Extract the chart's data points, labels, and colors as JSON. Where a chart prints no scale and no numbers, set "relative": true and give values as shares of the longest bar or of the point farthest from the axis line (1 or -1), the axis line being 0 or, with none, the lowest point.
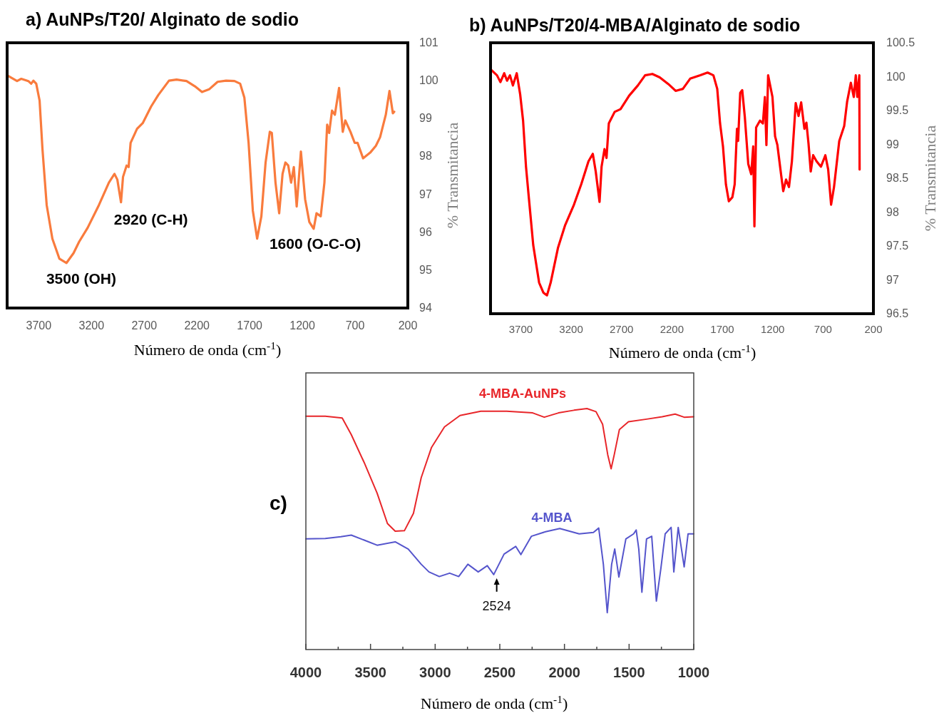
{
  "chart_data": [
    {
      "type": "line",
      "title": "a) AuNPs/T20/ Alginato de sodio",
      "xlabel": "Número de onda (cm$^{-1}$)",
      "ylabel": "% Transmitancia",
      "xlim": [
        4000,
        200
      ],
      "xticks": [
        3700,
        3200,
        2700,
        2200,
        1700,
        1200,
        700,
        200
      ],
      "ylim": [
        94,
        101
      ],
      "yticks": [
        94,
        95,
        96,
        97,
        98,
        99,
        100,
        101
      ],
      "grid": false,
      "legend": false,
      "marker": "none",
      "line_style": "solid",
      "annotations": [
        {
          "text": "3500  (OH)",
          "x": 3500,
          "y": 95.2
        },
        {
          "text": "2920 (C-H)",
          "x": 2920,
          "y": 96.8
        },
        {
          "text": "1600 (O-C-O)",
          "x": 1600,
          "y": 95.8
        }
      ],
      "series": [
        {
          "color": "#f97b3d",
          "x": [
            4000,
            3906,
            3866,
            3799,
            3772,
            3751,
            3724,
            3692,
            3665,
            3625,
            3571,
            3504,
            3437,
            3370,
            3317,
            3236,
            3129,
            3035,
            2982,
            2955,
            2920,
            2901,
            2867,
            2848,
            2829,
            2768,
            2714,
            2634,
            2567,
            2465,
            2393,
            2299,
            2219,
            2152,
            2085,
            2004,
            1924,
            1844,
            1790,
            1750,
            1710,
            1670,
            1629,
            1589,
            1549,
            1509,
            1490,
            1455,
            1420,
            1388,
            1361,
            1334,
            1307,
            1281,
            1254,
            1214,
            1174,
            1134,
            1093,
            1066,
            1026,
            991,
            965,
            946,
            919,
            892,
            852,
            817,
            793,
            744,
            704,
            677,
            624,
            557,
            503,
            463,
            409,
            374,
            342,
            329
          ],
          "values": [
            100.14,
            99.99,
            100.05,
            99.99,
            99.92,
            100.0,
            99.92,
            99.47,
            98.2,
            96.72,
            95.83,
            95.3,
            95.19,
            95.45,
            95.75,
            96.12,
            96.72,
            97.31,
            97.54,
            97.39,
            96.79,
            97.46,
            97.76,
            97.72,
            98.36,
            98.73,
            98.88,
            99.32,
            99.62,
            100.0,
            100.03,
            99.99,
            99.85,
            99.7,
            99.77,
            99.97,
            100.0,
            99.99,
            99.92,
            99.55,
            98.36,
            96.57,
            95.83,
            96.42,
            97.84,
            98.65,
            98.62,
            97.31,
            96.5,
            97.54,
            97.84,
            97.76,
            97.31,
            97.72,
            96.68,
            98.13,
            96.87,
            96.27,
            96.09,
            96.5,
            96.42,
            97.31,
            98.84,
            98.62,
            99.21,
            99.1,
            99.81,
            98.65,
            98.95,
            98.65,
            98.36,
            98.36,
            97.95,
            98.1,
            98.28,
            98.51,
            99.1,
            99.73,
            99.14,
            99.18
          ]
        }
      ]
    },
    {
      "type": "line",
      "title": "b) AuNPs/T20/4-MBA/Alginato de sodio",
      "xlabel": "Número de onda (cm$^{-1}$)",
      "ylabel": "% Transmitancia",
      "xlim": [
        4000,
        200
      ],
      "xticks": [
        3700,
        3200,
        2700,
        2200,
        1700,
        1200,
        700,
        200
      ],
      "ylim": [
        96.5,
        100.5
      ],
      "yticks": [
        96.5,
        97,
        97.5,
        98,
        98.5,
        99,
        99.5,
        100,
        100.5
      ],
      "grid": false,
      "legend": false,
      "marker": "none",
      "line_style": "solid",
      "series": [
        {
          "color": "#ff0000",
          "x": [
            4000,
            3936,
            3902,
            3864,
            3836,
            3807,
            3778,
            3740,
            3706,
            3677,
            3648,
            3619,
            3576,
            3518,
            3475,
            3440,
            3403,
            3331,
            3259,
            3172,
            3100,
            3028,
            2985,
            2956,
            2918,
            2898,
            2869,
            2849,
            2826,
            2768,
            2710,
            2624,
            2538,
            2466,
            2394,
            2321,
            2235,
            2163,
            2091,
            2019,
            1918,
            1846,
            1788,
            1750,
            1722,
            1693,
            1664,
            1635,
            1600,
            1577,
            1554,
            1543,
            1522,
            1502,
            1476,
            1442,
            1413,
            1393,
            1381,
            1364,
            1326,
            1297,
            1277,
            1262,
            1245,
            1202,
            1176,
            1153,
            1115,
            1095,
            1067,
            1038,
            1009,
            971,
            943,
            917,
            885,
            865,
            844,
            822,
            798,
            764,
            721,
            677,
            649,
            620,
            591,
            539,
            490,
            461,
            424,
            395,
            375,
            360,
            340,
            337
          ],
          "values": [
            100.11,
            100.02,
            99.92,
            100.05,
            99.94,
            100.02,
            99.87,
            100.05,
            99.74,
            99.35,
            98.67,
            98.2,
            97.51,
            96.96,
            96.81,
            96.77,
            96.96,
            97.47,
            97.81,
            98.11,
            98.41,
            98.75,
            98.86,
            98.6,
            98.15,
            98.67,
            98.93,
            98.8,
            99.31,
            99.48,
            99.52,
            99.72,
            99.87,
            100.02,
            100.04,
            99.99,
            99.89,
            99.79,
            99.82,
            99.97,
            100.02,
            100.06,
            100.02,
            99.82,
            99.31,
            98.97,
            98.41,
            98.16,
            98.22,
            98.41,
            99.23,
            99.05,
            99.76,
            99.8,
            99.4,
            98.71,
            98.56,
            98.97,
            97.79,
            99.25,
            99.35,
            99.31,
            99.7,
            98.99,
            100.02,
            99.7,
            99.12,
            98.99,
            98.54,
            98.31,
            98.48,
            98.37,
            98.75,
            99.61,
            99.42,
            99.62,
            99.23,
            99.32,
            99.01,
            98.6,
            98.84,
            98.75,
            98.67,
            98.84,
            98.63,
            98.11,
            98.37,
            99.05,
            99.27,
            99.63,
            99.91,
            99.7,
            100.02,
            99.7,
            100.02,
            98.63
          ]
        }
      ]
    },
    {
      "type": "line",
      "title": "c)",
      "xlabel": "Número de onda (cm$^{-1}$)",
      "relative": true,
      "xlim": [
        4000,
        1000
      ],
      "xticks": [
        4000,
        {
          "value": 3750,
          "label": null
        },
        3500,
        {
          "value": 3250,
          "label": null
        },
        3000,
        {
          "value": 2750,
          "label": null
        },
        2500,
        {
          "value": 2250,
          "label": null
        },
        2000,
        {
          "value": 1750,
          "label": null
        },
        1500,
        {
          "value": 1250,
          "label": null
        },
        1000
      ],
      "tick_labels": "x",
      "grid": false,
      "legend": false,
      "marker": "none",
      "line_style": "solid",
      "annotations": [
        {
          "text": "2524",
          "x": 2524,
          "y": 0.311
        }
      ],
      "series": [
        {
          "name": "4-MBA-AuNPs",
          "color": "#e8262a",
          "x": [
            4000,
            3850,
            3719,
            3649,
            3549,
            3449,
            3369,
            3309,
            3238,
            3168,
            3108,
            3028,
            2928,
            2808,
            2647,
            2447,
            2246,
            2156,
            2046,
            1926,
            1826,
            1756,
            1705,
            1665,
            1639,
            1615,
            1575,
            1505,
            1365,
            1244,
            1144,
            1074,
            1000
          ],
          "values": [
            0.968,
            0.968,
            0.961,
            0.892,
            0.776,
            0.649,
            0.523,
            0.491,
            0.493,
            0.565,
            0.713,
            0.839,
            0.924,
            0.971,
            0.989,
            0.989,
            0.982,
            0.964,
            0.982,
            0.993,
            1.0,
            0.987,
            0.935,
            0.808,
            0.75,
            0.808,
            0.913,
            0.945,
            0.956,
            0.966,
            0.977,
            0.964,
            0.966
          ]
        },
        {
          "name": "4-MBA",
          "color": "#5555cc",
          "x": [
            4000,
            3850,
            3729,
            3649,
            3549,
            3449,
            3309,
            3208,
            3108,
            3048,
            2968,
            2888,
            2818,
            2747,
            2667,
            2597,
            2547,
            2467,
            2377,
            2337,
            2256,
            2146,
            2036,
            1886,
            1776,
            1735,
            1699,
            1669,
            1635,
            1611,
            1579,
            1525,
            1465,
            1445,
            1425,
            1401,
            1365,
            1325,
            1289,
            1255,
            1221,
            1175,
            1154,
            1120,
            1074,
            1044,
            1000
          ],
          "values": [
            0.459,
            0.461,
            0.468,
            0.475,
            0.454,
            0.433,
            0.447,
            0.417,
            0.354,
            0.322,
            0.303,
            0.317,
            0.303,
            0.354,
            0.322,
            0.348,
            0.311,
            0.396,
            0.428,
            0.394,
            0.47,
            0.489,
            0.502,
            0.48,
            0.486,
            0.504,
            0.354,
            0.153,
            0.354,
            0.417,
            0.301,
            0.459,
            0.48,
            0.496,
            0.417,
            0.238,
            0.459,
            0.47,
            0.201,
            0.333,
            0.48,
            0.507,
            0.322,
            0.507,
            0.343,
            0.48,
            0.48
          ]
        }
      ]
    }
  ]
}
